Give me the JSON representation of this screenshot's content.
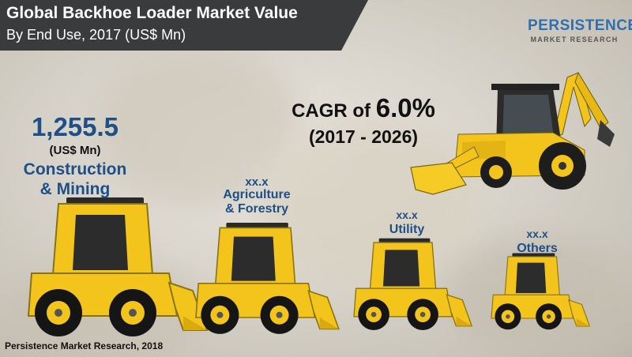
{
  "header": {
    "title": "Global Backhoe Loader Market Value",
    "subtitle": "By End Use, 2017 (US$ Mn)"
  },
  "logo": {
    "name": "PERSISTENCE",
    "tagline": "MARKET RESEARCH",
    "colors": {
      "brand_blue": "#2f6fb0",
      "tagline_gray": "#555555"
    }
  },
  "cagr": {
    "prefix": "CAGR of",
    "value": "6.0%",
    "period": "(2017 - 2026)"
  },
  "source": "Persistence Market Research, 2018",
  "colors": {
    "value_blue": "#1e4f86",
    "machine_yellow": "#f2c41c",
    "machine_dark": "#2a2a2a",
    "title_band": "#3a3b3d"
  },
  "chart_data": {
    "type": "bar",
    "categories": [
      "Construction & Mining",
      "Agriculture & Forestry",
      "Utility",
      "Others"
    ],
    "values": [
      1255.5,
      null,
      null,
      null
    ],
    "value_labels": [
      "1,255.5",
      "xx.x",
      "xx.x",
      "xx.x"
    ],
    "unit_label": "(US$ Mn)",
    "category_labels": [
      [
        "Construction",
        "& Mining"
      ],
      [
        "Agriculture",
        "& Forestry"
      ],
      [
        "Utility"
      ],
      [
        "Others"
      ]
    ],
    "marks": "skid-steer loader illustrations, size decreasing by share"
  }
}
